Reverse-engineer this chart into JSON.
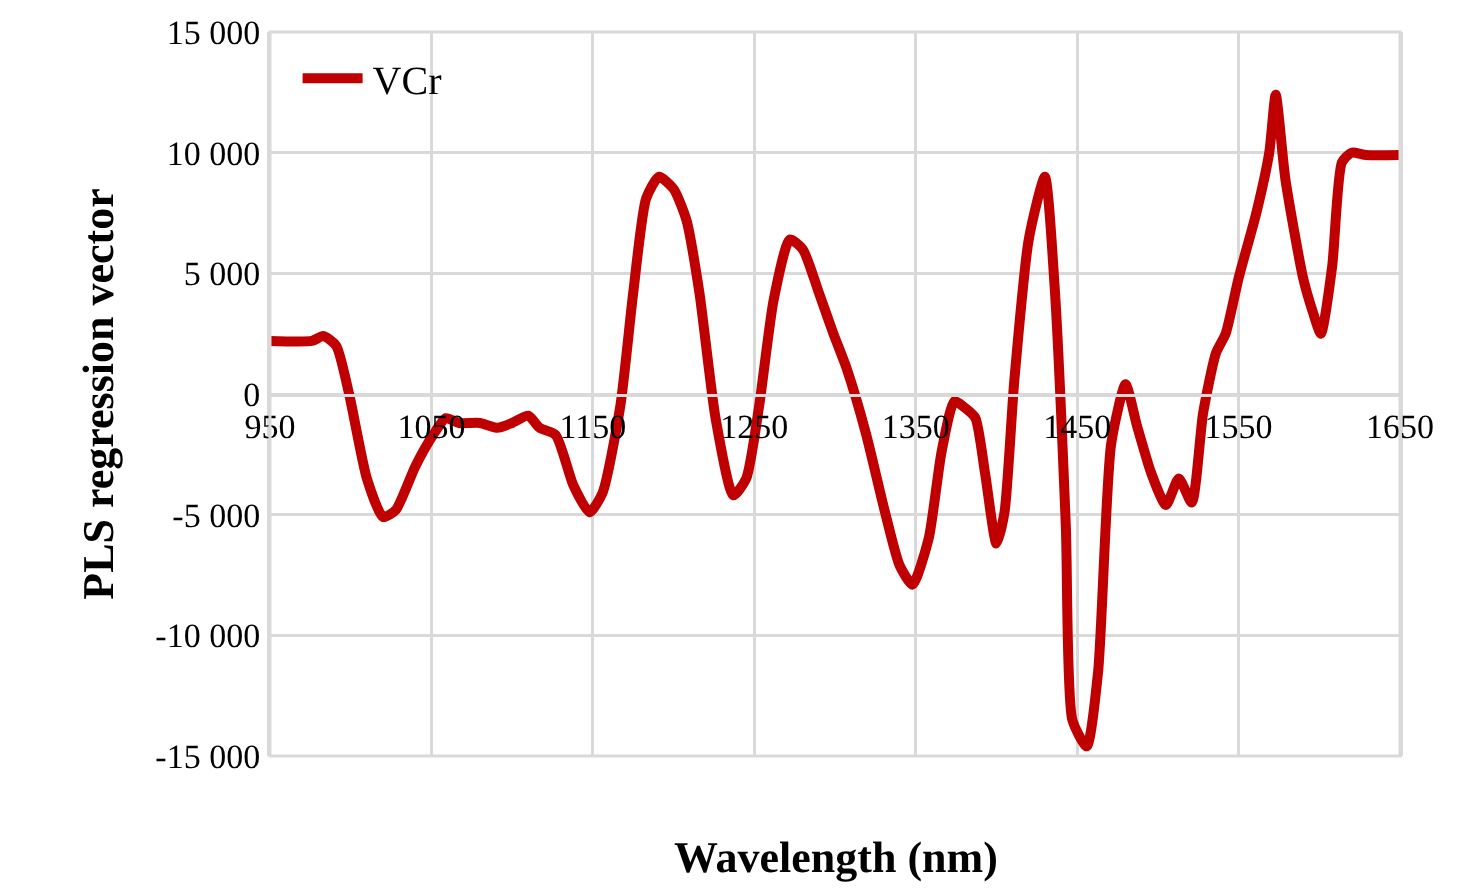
{
  "chart_data": {
    "type": "line",
    "xlabel": "Wavelength (nm)",
    "ylabel": "PLS regression vector",
    "xlim": [
      950,
      1650
    ],
    "xticks": [
      950,
      1050,
      1150,
      1250,
      1350,
      1450,
      1550,
      1650
    ],
    "ylim": [
      -15000,
      15000
    ],
    "yticks": [
      {
        "value": -15000,
        "label": "-15 000"
      },
      {
        "value": -10000,
        "label": "-10 000"
      },
      {
        "value": -5000,
        "label": "-5 000"
      },
      0,
      {
        "value": 5000,
        "label": "5 000"
      },
      {
        "value": 10000,
        "label": "10 000"
      },
      {
        "value": 15000,
        "label": "15 000"
      }
    ],
    "grid": true,
    "legend": "top left",
    "marker": "none",
    "line_style": "solid",
    "series": [
      {
        "name": "VCr",
        "color": "#c00000",
        "x": [
          950,
          976,
          983,
          991,
          999,
          1010,
          1020,
          1028,
          1040,
          1051,
          1059,
          1067,
          1080,
          1091,
          1100,
          1110,
          1117,
          1127,
          1138,
          1148,
          1156,
          1167,
          1175,
          1183,
          1191,
          1200,
          1208,
          1216,
          1226,
          1237,
          1245,
          1253,
          1262,
          1272,
          1280,
          1290,
          1299,
          1307,
          1319,
          1331,
          1340,
          1348,
          1358,
          1366,
          1374,
          1381,
          1387,
          1393,
          1400,
          1405,
          1411,
          1420,
          1430,
          1436,
          1443,
          1447,
          1456,
          1463,
          1471,
          1480,
          1487,
          1496,
          1505,
          1513,
          1521,
          1528,
          1536,
          1542,
          1550,
          1561,
          1569,
          1573,
          1579,
          1590,
          1596,
          1601,
          1608,
          1614,
          1620,
          1629,
          1650
        ],
        "values": [
          2200,
          2200,
          2400,
          2000,
          0,
          -3500,
          -5100,
          -4800,
          -3000,
          -1700,
          -1000,
          -1200,
          -1200,
          -1400,
          -1200,
          -900,
          -1400,
          -1700,
          -3800,
          -4900,
          -4100,
          -500,
          4200,
          8100,
          9000,
          8500,
          7200,
          4200,
          -1000,
          -4200,
          -3500,
          -500,
          3900,
          6400,
          6000,
          4200,
          2500,
          1100,
          -1600,
          -4900,
          -7100,
          -7900,
          -6000,
          -2400,
          -300,
          -600,
          -1000,
          -3300,
          -6200,
          -4900,
          500,
          6400,
          9000,
          4500,
          -5500,
          -13500,
          -14600,
          -11500,
          -2100,
          400,
          -1300,
          -3300,
          -4600,
          -3500,
          -4500,
          -800,
          1700,
          2500,
          4800,
          7500,
          10000,
          12400,
          8900,
          4800,
          3400,
          2500,
          5300,
          9600,
          10000,
          9900,
          9900
        ]
      }
    ]
  }
}
